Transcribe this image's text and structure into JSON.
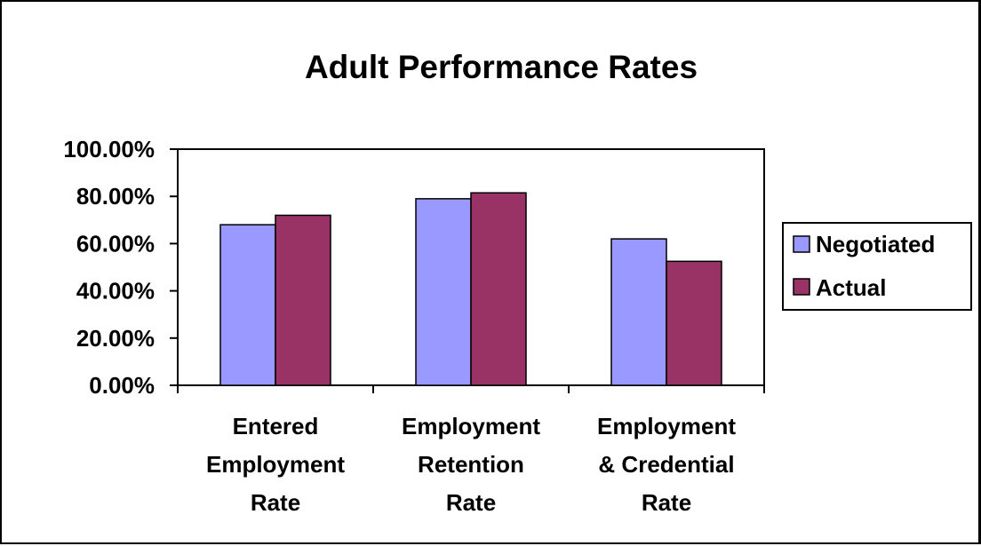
{
  "chart_data": {
    "type": "bar",
    "title": "Adult Performance Rates",
    "categories": [
      [
        "Entered",
        "Employment",
        "Rate"
      ],
      [
        "Employment",
        "Retention",
        "Rate"
      ],
      [
        "Employment",
        "& Credential",
        "Rate"
      ]
    ],
    "series": [
      {
        "name": "Negotiated",
        "color": "#9999ff",
        "values": [
          68,
          79,
          62
        ]
      },
      {
        "name": "Actual",
        "color": "#993366",
        "values": [
          72,
          81.5,
          52.5
        ]
      }
    ],
    "yticks": [
      "0.00%",
      "20.00%",
      "40.00%",
      "60.00%",
      "80.00%",
      "100.00%"
    ],
    "ylim": [
      0,
      100
    ],
    "xlabel": "",
    "ylabel": "",
    "grid": false,
    "legend_position": "right"
  }
}
